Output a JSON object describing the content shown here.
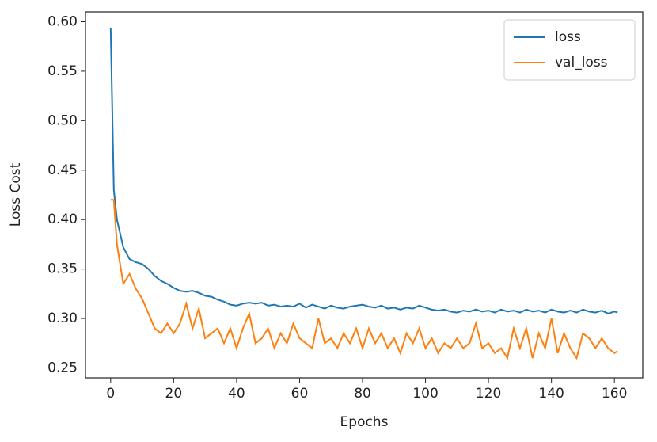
{
  "chart_data": {
    "type": "line",
    "xlabel": "Epochs",
    "ylabel": "Loss Cost",
    "x": [
      0,
      1,
      2,
      4,
      6,
      8,
      10,
      12,
      14,
      16,
      18,
      20,
      22,
      24,
      26,
      28,
      30,
      32,
      34,
      36,
      38,
      40,
      42,
      44,
      46,
      48,
      50,
      52,
      54,
      56,
      58,
      60,
      62,
      64,
      66,
      68,
      70,
      72,
      74,
      76,
      78,
      80,
      82,
      84,
      86,
      88,
      90,
      92,
      94,
      96,
      98,
      100,
      102,
      104,
      106,
      108,
      110,
      112,
      114,
      116,
      118,
      120,
      122,
      124,
      126,
      128,
      130,
      132,
      134,
      136,
      138,
      140,
      142,
      144,
      146,
      148,
      150,
      152,
      154,
      156,
      158,
      160,
      161
    ],
    "series": [
      {
        "name": "loss",
        "color": "#1f77b4",
        "values": [
          0.594,
          0.43,
          0.4,
          0.372,
          0.36,
          0.357,
          0.355,
          0.35,
          0.343,
          0.338,
          0.335,
          0.331,
          0.328,
          0.327,
          0.328,
          0.326,
          0.323,
          0.322,
          0.319,
          0.317,
          0.314,
          0.313,
          0.315,
          0.316,
          0.315,
          0.316,
          0.313,
          0.314,
          0.312,
          0.313,
          0.312,
          0.315,
          0.311,
          0.314,
          0.312,
          0.31,
          0.313,
          0.311,
          0.31,
          0.312,
          0.313,
          0.314,
          0.312,
          0.311,
          0.313,
          0.31,
          0.311,
          0.309,
          0.311,
          0.31,
          0.313,
          0.311,
          0.309,
          0.308,
          0.309,
          0.307,
          0.306,
          0.308,
          0.307,
          0.309,
          0.307,
          0.308,
          0.306,
          0.309,
          0.307,
          0.308,
          0.306,
          0.309,
          0.307,
          0.308,
          0.306,
          0.309,
          0.307,
          0.306,
          0.308,
          0.306,
          0.309,
          0.307,
          0.306,
          0.308,
          0.305,
          0.307,
          0.306
        ]
      },
      {
        "name": "val_loss",
        "color": "#ff7f0e",
        "values": [
          0.42,
          0.42,
          0.375,
          0.335,
          0.345,
          0.33,
          0.32,
          0.305,
          0.29,
          0.285,
          0.295,
          0.285,
          0.295,
          0.315,
          0.29,
          0.31,
          0.28,
          0.285,
          0.29,
          0.275,
          0.29,
          0.27,
          0.29,
          0.305,
          0.275,
          0.28,
          0.29,
          0.27,
          0.285,
          0.275,
          0.295,
          0.28,
          0.275,
          0.27,
          0.3,
          0.275,
          0.28,
          0.27,
          0.285,
          0.275,
          0.29,
          0.27,
          0.29,
          0.275,
          0.285,
          0.27,
          0.28,
          0.265,
          0.285,
          0.275,
          0.29,
          0.27,
          0.28,
          0.265,
          0.275,
          0.27,
          0.28,
          0.27,
          0.275,
          0.295,
          0.27,
          0.275,
          0.265,
          0.27,
          0.26,
          0.29,
          0.27,
          0.29,
          0.26,
          0.285,
          0.27,
          0.3,
          0.265,
          0.285,
          0.27,
          0.26,
          0.285,
          0.28,
          0.27,
          0.28,
          0.27,
          0.265,
          0.267
        ]
      }
    ],
    "xlim": [
      -8,
      169
    ],
    "xticks": [
      0,
      20,
      40,
      60,
      80,
      100,
      120,
      140,
      160
    ],
    "ylim": [
      0.24,
      0.61
    ],
    "yticks": [
      0.25,
      {
        "value": 0.3,
        "label": "0.30"
      },
      0.35,
      {
        "value": 0.4,
        "label": "0.40"
      },
      0.45,
      {
        "value": 0.5,
        "label": "0.50"
      },
      0.55,
      {
        "value": 0.6,
        "label": "0.60"
      }
    ],
    "legend": "upper right",
    "grid": false
  }
}
